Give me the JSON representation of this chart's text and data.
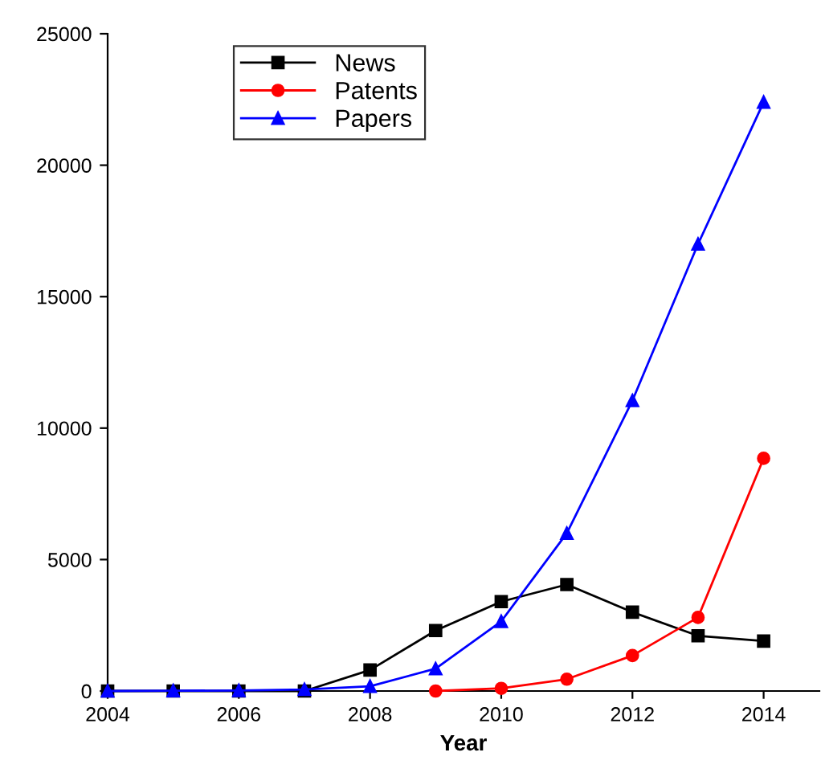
{
  "chart_data": {
    "type": "line",
    "xlabel": "Year",
    "xlim": [
      2004,
      2014.85
    ],
    "xticks": [
      2004,
      2006,
      2008,
      2010,
      2012,
      2014
    ],
    "ylim": [
      0,
      25000
    ],
    "yticks": [
      0,
      5000,
      10000,
      15000,
      20000,
      25000
    ],
    "grid": false,
    "legend": "top left",
    "line_style": "solid",
    "series": [
      {
        "name": "News",
        "color": "#000000",
        "marker": "square",
        "x": [
          2004,
          2005,
          2006,
          2007,
          2008,
          2009,
          2010,
          2011,
          2012,
          2013,
          2014
        ],
        "values": [
          0,
          0,
          0,
          0,
          800,
          2300,
          3400,
          4050,
          3000,
          2100,
          1900
        ]
      },
      {
        "name": "Patents",
        "color": "#ff0000",
        "marker": "circle",
        "x": [
          2009,
          2010,
          2011,
          2012,
          2013,
          2014
        ],
        "values": [
          0,
          100,
          450,
          1350,
          2800,
          8850
        ]
      },
      {
        "name": "Papers",
        "color": "#0000ff",
        "marker": "triangle",
        "x": [
          2004,
          2005,
          2006,
          2007,
          2008,
          2009,
          2010,
          2011,
          2012,
          2013,
          2014
        ],
        "values": [
          0,
          10,
          20,
          60,
          180,
          850,
          2650,
          6000,
          11050,
          17000,
          22400
        ]
      }
    ]
  }
}
